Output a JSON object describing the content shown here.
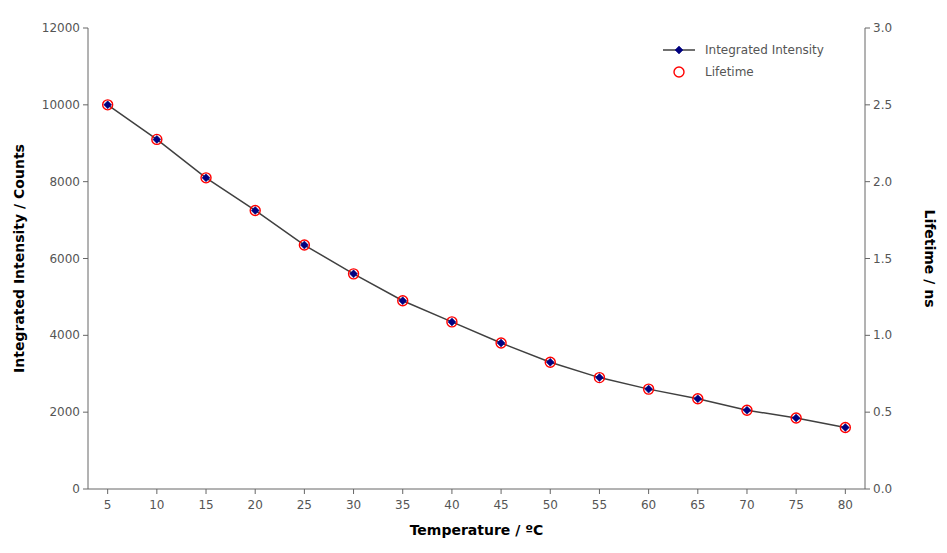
{
  "chart_data": {
    "type": "line",
    "xlabel": "Temperature / ºC",
    "ylabel": "Integrated Intensity / Counts",
    "y2label": "Lifetime / ns",
    "x": [
      5,
      10,
      15,
      20,
      25,
      30,
      35,
      40,
      45,
      50,
      55,
      60,
      65,
      70,
      75,
      80
    ],
    "series": [
      {
        "name": "Integrated Intensity",
        "type": "line",
        "marker": "diamond",
        "color": "#404040",
        "colors": [
          "#000080",
          "#000080",
          "#000080",
          "#000080",
          "#000080",
          "#000080",
          "#000080",
          "#000080",
          "#000080",
          "#000080",
          "#000080",
          "#000080",
          "#000080",
          "#000080",
          "#000080",
          "#000080"
        ],
        "values": [
          10000,
          9100,
          8100,
          7250,
          6350,
          5600,
          4900,
          4350,
          3800,
          3300,
          2900,
          2600,
          2350,
          2050,
          1850,
          1600
        ]
      },
      {
        "name": "Lifetime",
        "type": "scatter",
        "marker": "circle",
        "color": "#FF0000",
        "axis": "y2",
        "values": [
          2.5,
          2.275,
          2.025,
          1.8125,
          1.5875,
          1.4,
          1.225,
          1.0875,
          0.95,
          0.825,
          0.725,
          0.65,
          0.5875,
          0.5125,
          0.4625,
          0.4
        ]
      }
    ],
    "xlim": [
      3,
      82
    ],
    "ylim": [
      0,
      12000
    ],
    "y2lim": [
      0,
      3
    ],
    "xticks": [
      5,
      10,
      15,
      20,
      25,
      30,
      35,
      40,
      45,
      50,
      55,
      60,
      65,
      70,
      75,
      80
    ],
    "yticks": [
      0,
      2000,
      4000,
      6000,
      8000,
      10000,
      12000
    ],
    "y2ticks": [
      {
        "value": 0,
        "label": "0.0"
      },
      0.5,
      {
        "value": 1.0,
        "label": "1.0"
      },
      1.5,
      {
        "value": 2.0,
        "label": "2.0"
      },
      2.5,
      {
        "value": 3.0,
        "label": "3.0"
      }
    ],
    "grid": false,
    "legend": "upper right"
  }
}
